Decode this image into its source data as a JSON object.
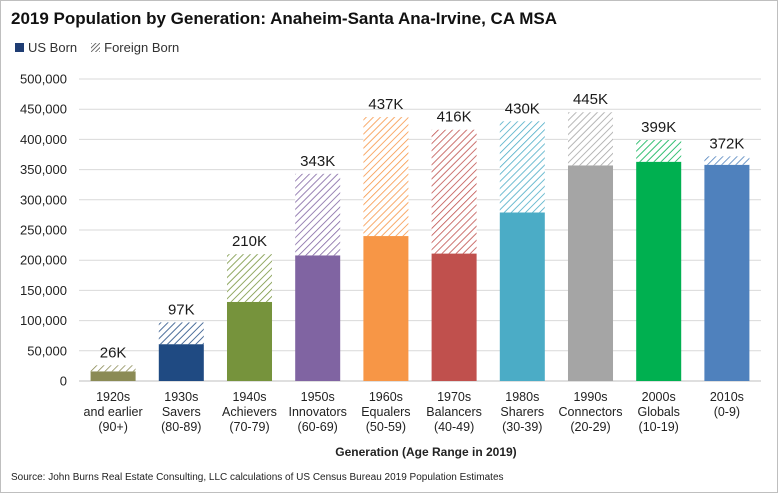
{
  "title": "2019 Population by Generation: Anaheim-Santa Ana-Irvine, CA MSA",
  "legend": {
    "us_born": "US Born",
    "foreign_born": "Foreign Born"
  },
  "source": "Source: John Burns Real Estate Consulting, LLC calculations of US Census Bureau 2019 Population Estimates",
  "chart_data": {
    "type": "bar",
    "stacked": true,
    "xlabel": "Generation (Age Range in 2019)",
    "ylabel": "",
    "ylim": [
      0,
      500000
    ],
    "yticks": [
      0,
      50000,
      100000,
      150000,
      200000,
      250000,
      300000,
      350000,
      400000,
      450000,
      500000
    ],
    "ytick_labels": [
      "0",
      "50,000",
      "100,000",
      "150,000",
      "200,000",
      "250,000",
      "300,000",
      "350,000",
      "400,000",
      "450,000",
      "500,000"
    ],
    "grid": true,
    "legend_position": "top-left",
    "categories": [
      [
        "1920s",
        "and earlier",
        "(90+)"
      ],
      [
        "1930s",
        "Savers",
        "(80-89)"
      ],
      [
        "1940s",
        "Achievers",
        "(70-79)"
      ],
      [
        "1950s",
        "Innovators",
        "(60-69)"
      ],
      [
        "1960s",
        "Equalers",
        "(50-59)"
      ],
      [
        "1970s",
        "Balancers",
        "(40-49)"
      ],
      [
        "1980s",
        "Sharers",
        "(30-39)"
      ],
      [
        "1990s",
        "Connectors",
        "(20-29)"
      ],
      [
        "2000s",
        "Globals",
        "(10-19)"
      ],
      [
        "2010s",
        "(0-9)"
      ]
    ],
    "series": [
      {
        "name": "US Born",
        "values": [
          16000,
          61000,
          131000,
          208000,
          240000,
          211000,
          279000,
          357000,
          363000,
          358000
        ]
      },
      {
        "name": "Foreign Born",
        "values": [
          10000,
          36000,
          79000,
          135000,
          197000,
          205000,
          151000,
          88000,
          36000,
          14000
        ]
      }
    ],
    "total_labels": [
      "26K",
      "97K",
      "210K",
      "343K",
      "437K",
      "416K",
      "430K",
      "445K",
      "399K",
      "372K"
    ],
    "colors": [
      "#8b8b55",
      "#1f4a82",
      "#76933c",
      "#8064a2",
      "#f79646",
      "#c0504d",
      "#4bacc6",
      "#a5a5a5",
      "#00b050",
      "#4f81bd"
    ]
  }
}
